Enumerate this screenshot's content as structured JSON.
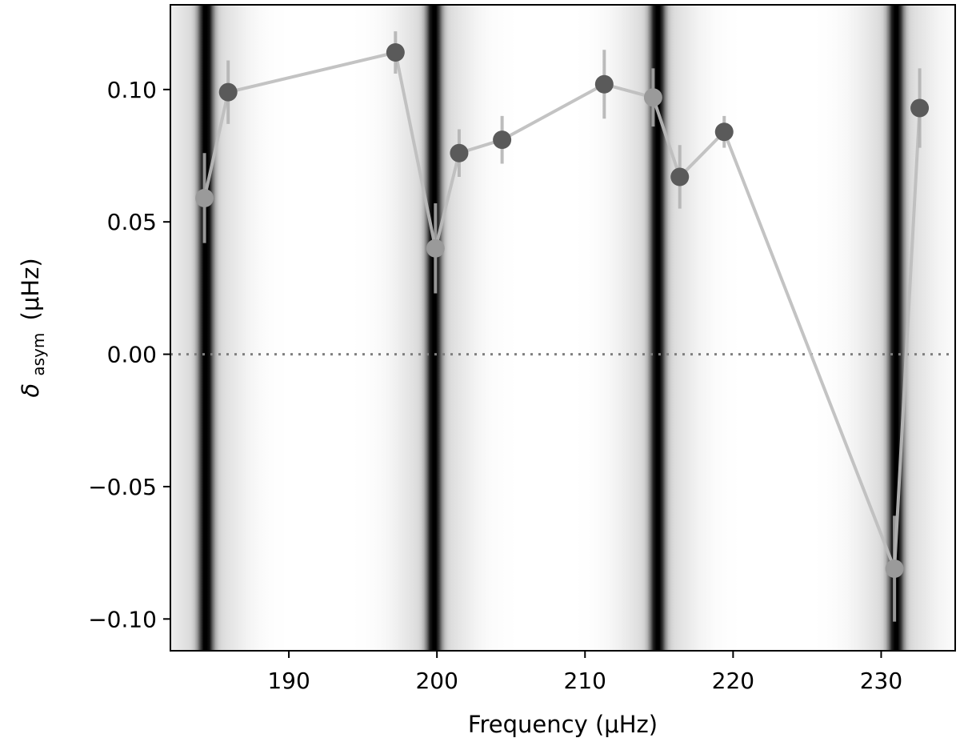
{
  "chart_data": {
    "type": "scatter",
    "xlabel": "Frequency (μHz)",
    "ylabel_symbol": "δ",
    "ylabel_subscript": "asym",
    "ylabel_unit": "(μHz)",
    "xlim": [
      182.0,
      235.0
    ],
    "ylim": [
      -0.112,
      0.132
    ],
    "x_ticks": [
      190,
      200,
      210,
      220,
      230
    ],
    "x_tick_labels": [
      "190",
      "200",
      "210",
      "220",
      "230"
    ],
    "y_ticks": [
      0.1,
      0.05,
      0.0,
      -0.05,
      -0.1
    ],
    "y_tick_labels": [
      "0.10",
      "0.05",
      "0.00",
      "−0.05",
      "−0.10"
    ],
    "zero_line": 0.0,
    "background_dark_bands": [
      184.4,
      199.8,
      214.9,
      231.0
    ],
    "series": [
      {
        "points": [
          {
            "x": 184.3,
            "y": 0.059,
            "err": 0.017
          },
          {
            "x": 185.9,
            "y": 0.099,
            "err": 0.012
          },
          {
            "x": 197.2,
            "y": 0.114,
            "err": 0.008
          },
          {
            "x": 199.9,
            "y": 0.04,
            "err": 0.017
          },
          {
            "x": 201.5,
            "y": 0.076,
            "err": 0.009
          },
          {
            "x": 204.4,
            "y": 0.081,
            "err": 0.009
          },
          {
            "x": 211.3,
            "y": 0.102,
            "err": 0.013
          },
          {
            "x": 214.6,
            "y": 0.097,
            "err": 0.011
          },
          {
            "x": 216.4,
            "y": 0.067,
            "err": 0.012
          },
          {
            "x": 219.4,
            "y": 0.084,
            "err": 0.006
          },
          {
            "x": 230.9,
            "y": -0.081,
            "err": 0.02
          },
          {
            "x": 232.6,
            "y": 0.093,
            "err": 0.015
          }
        ]
      }
    ],
    "colors": {
      "line": "#bdbdbd",
      "point_light": "#9a9a9a",
      "point_dark": "#5a5a5a",
      "errorbar": "#b0b0b0",
      "zero_line": "#7f7f7f"
    }
  }
}
